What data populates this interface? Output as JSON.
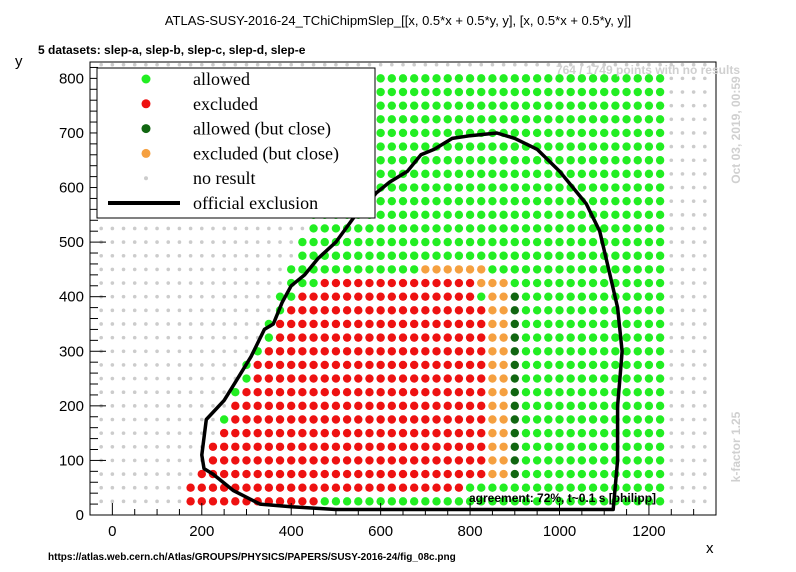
{
  "chart_data": {
    "type": "scatter",
    "title": "ATLAS-SUSY-2016-24_TChiChipmSlep_[[x, 0.5*x + 0.5*y, y], [x, 0.5*x + 0.5*y, y]]",
    "subtitle": "5 datasets: slep-a, slep-b, slep-c, slep-d, slep-e",
    "xlabel": "x",
    "ylabel": "y",
    "xlim": [
      -50,
      1350
    ],
    "ylim": [
      0,
      830
    ],
    "xticks": [
      0,
      200,
      400,
      600,
      800,
      1000,
      1200
    ],
    "yticks": [
      0,
      100,
      200,
      300,
      400,
      500,
      600,
      700,
      800
    ],
    "grid": false,
    "legend_position": "top-left",
    "legend": [
      {
        "key": "allowed",
        "label": "allowed",
        "color": "#22ee22",
        "kind": "dot"
      },
      {
        "key": "excluded",
        "label": "excluded",
        "color": "#ee1111",
        "kind": "dot"
      },
      {
        "key": "close_allowed",
        "label": "allowed (but close)",
        "color": "#116611",
        "kind": "dot"
      },
      {
        "key": "close_excluded",
        "label": "excluded (but close)",
        "color": "#f5a040",
        "kind": "dot"
      },
      {
        "key": "noresult",
        "label": "no result",
        "color": "#cccccc",
        "kind": "smalldot"
      },
      {
        "key": "official",
        "label": "official exclusion",
        "color": "#000000",
        "kind": "line"
      }
    ],
    "annotations": {
      "points_no_results": "764 / 1749 points with no results",
      "timestamp": "Oct 03, 2019, 00:59",
      "kfactor": "k-factor 1.25",
      "agreement": "agreement: 72%, t~0.1 s [philipp]",
      "url": "https://atlas.web.cern.ch/Atlas/GROUPS/PHYSICS/PAPERS/SUSY-2016-24/fig_08c.png"
    },
    "grid_points": {
      "x_start": 150,
      "x_end": 1225,
      "x_step": 25,
      "y_start": 25,
      "y_end": 800,
      "y_step": 25
    },
    "regions": {
      "allowed_boundary_upper_edge": [
        [
          175,
          50
        ],
        [
          250,
          175
        ],
        [
          300,
          275
        ],
        [
          350,
          350
        ],
        [
          400,
          450
        ],
        [
          450,
          550
        ],
        [
          500,
          625
        ],
        [
          550,
          750
        ],
        [
          575,
          800
        ]
      ],
      "excluded_region": [
        [
          150,
          25
        ],
        [
          200,
          75
        ],
        [
          225,
          125
        ],
        [
          275,
          200
        ],
        [
          325,
          275
        ],
        [
          375,
          350
        ],
        [
          425,
          400
        ],
        [
          500,
          450
        ],
        [
          800,
          450
        ],
        [
          825,
          400
        ],
        [
          850,
          350
        ],
        [
          875,
          250
        ],
        [
          875,
          100
        ],
        [
          800,
          50
        ],
        [
          475,
          25
        ]
      ],
      "close_band": [
        [
          700,
          450
        ],
        [
          800,
          475
        ],
        [
          900,
          425
        ],
        [
          925,
          300
        ],
        [
          925,
          75
        ],
        [
          850,
          75
        ],
        [
          850,
          350
        ],
        [
          825,
          425
        ],
        [
          700,
          450
        ]
      ]
    },
    "series": [
      {
        "name": "official exclusion",
        "color": "#000000",
        "x": [
          400,
          330,
          270,
          240,
          225,
          205,
          200,
          210,
          250,
          280,
          310,
          340,
          360,
          380,
          400,
          430,
          460,
          500,
          540,
          560,
          590,
          620,
          660,
          690,
          720,
          760,
          800,
          860,
          900,
          950,
          1000,
          1030,
          1060,
          1090,
          1110,
          1130,
          1140,
          1135,
          1130,
          1130,
          1130,
          1120,
          900,
          700,
          500,
          400
        ],
        "y": [
          15,
          20,
          45,
          65,
          75,
          85,
          110,
          175,
          210,
          250,
          290,
          340,
          350,
          390,
          420,
          440,
          470,
          500,
          545,
          560,
          590,
          610,
          630,
          660,
          670,
          690,
          695,
          700,
          690,
          670,
          630,
          600,
          570,
          520,
          450,
          380,
          300,
          250,
          200,
          150,
          100,
          10,
          10,
          10,
          10,
          15
        ]
      }
    ]
  }
}
